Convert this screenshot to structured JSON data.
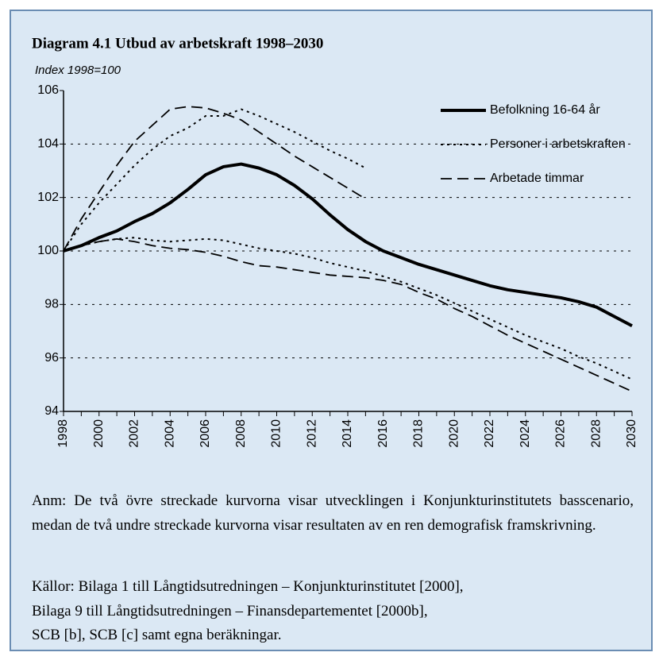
{
  "chart_data": {
    "type": "line",
    "title": "Diagram 4.1 Utbud av arbetskraft 1998–2030",
    "y_label": "Index 1998=100",
    "x": [
      1998,
      1999,
      2000,
      2001,
      2002,
      2003,
      2004,
      2005,
      2006,
      2007,
      2008,
      2009,
      2010,
      2011,
      2012,
      2013,
      2014,
      2015,
      2016,
      2017,
      2018,
      2019,
      2020,
      2021,
      2022,
      2023,
      2024,
      2025,
      2026,
      2027,
      2028,
      2029,
      2030
    ],
    "xlim": [
      1998,
      2030
    ],
    "xticks": [
      1998,
      2000,
      2002,
      2004,
      2006,
      2008,
      2010,
      2012,
      2014,
      2016,
      2018,
      2020,
      2022,
      2024,
      2026,
      2028,
      2030
    ],
    "ylim": [
      94,
      106
    ],
    "yticks": [
      94,
      96,
      98,
      100,
      102,
      104,
      106
    ],
    "grid": true,
    "legend": "top-right",
    "series": [
      {
        "name": "Befolkning 16-64 år",
        "color": "#000000",
        "line_style": "solid",
        "values": [
          100,
          100.2,
          100.5,
          100.75,
          101.1,
          101.4,
          101.8,
          102.3,
          102.85,
          103.15,
          103.25,
          103.1,
          102.85,
          102.45,
          101.95,
          101.35,
          100.8,
          100.35,
          100.0,
          99.75,
          99.5,
          99.3,
          99.1,
          98.9,
          98.7,
          98.55,
          98.45,
          98.35,
          98.25,
          98.1,
          97.9,
          97.55,
          97.2
        ]
      },
      {
        "name": "Personer i arbetskraften",
        "color": "#000000",
        "line_style": "dotted",
        "values": [
          100,
          100.2,
          100.35,
          100.45,
          100.5,
          100.4,
          100.35,
          100.4,
          100.45,
          100.4,
          100.25,
          100.1,
          100.0,
          99.9,
          99.75,
          99.55,
          99.4,
          99.25,
          99.05,
          98.85,
          98.6,
          98.35,
          98.05,
          97.75,
          97.45,
          97.15,
          96.85,
          96.6,
          96.35,
          96.05,
          95.8,
          95.5,
          95.2
        ],
        "upper_values": [
          100,
          101,
          101.8,
          102.5,
          103.2,
          103.8,
          104.3,
          104.6,
          105.05,
          105.05,
          105.3,
          105.05,
          104.75,
          104.45,
          104.1,
          103.75,
          103.45,
          103.1,
          null,
          null,
          null,
          null,
          null,
          null,
          null,
          null,
          null,
          null,
          null,
          null,
          null,
          null,
          null
        ]
      },
      {
        "name": "Arbetade timmar",
        "color": "#000000",
        "line_style": "dashed",
        "values": [
          100,
          100.2,
          100.35,
          100.45,
          100.35,
          100.2,
          100.1,
          100.05,
          99.95,
          99.8,
          99.6,
          99.45,
          99.4,
          99.3,
          99.2,
          99.1,
          99.05,
          99.0,
          98.9,
          98.75,
          98.45,
          98.2,
          97.85,
          97.55,
          97.2,
          96.85,
          96.55,
          96.25,
          95.95,
          95.65,
          95.35,
          95.05,
          94.75
        ],
        "upper_values": [
          100,
          101.2,
          102.2,
          103.2,
          104.1,
          104.7,
          105.3,
          105.4,
          105.35,
          105.15,
          104.9,
          104.45,
          104.0,
          103.55,
          103.15,
          102.75,
          102.35,
          101.95,
          null,
          null,
          null,
          null,
          null,
          null,
          null,
          null,
          null,
          null,
          null,
          null,
          null,
          null,
          null
        ]
      }
    ],
    "note": "Anm: De två övre streckade kurvorna visar utvecklingen i Konjunkturinstitutets basscenario, medan de två undre streckade kurvorna visar resultaten av en ren demografisk framskrivning.",
    "sources": [
      "Källor: Bilaga 1 till Långtidsutredningen – Konjunkturinstitutet [2000],",
      "Bilaga 9 till Långtidsutredningen – Finansdepartementet [2000b],",
      "SCB [b], SCB [c] samt egna beräkningar."
    ]
  }
}
